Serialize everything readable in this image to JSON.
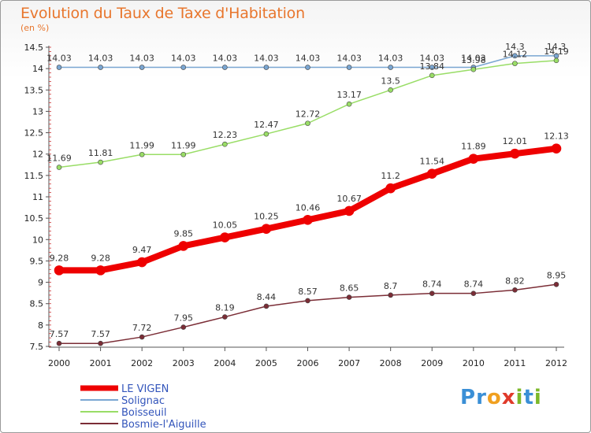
{
  "title": "Evolution du Taux de Taxe d'Habitation",
  "subtitle": "(en %)",
  "logo": {
    "letters": [
      "P",
      "r",
      "o",
      "x",
      "i",
      "t",
      "i"
    ],
    "colors": [
      "#3a8fd6",
      "#3a8fd6",
      "#f0a020",
      "#e03a2a",
      "#7cb82a",
      "#3a8fd6",
      "#7cb82a"
    ]
  },
  "chart_data": {
    "type": "line",
    "x": [
      2000,
      2001,
      2002,
      2003,
      2004,
      2005,
      2006,
      2007,
      2008,
      2009,
      2010,
      2011,
      2012
    ],
    "ylim": [
      7.5,
      14.5
    ],
    "yticks": [
      "7.5",
      "8",
      "8.5",
      "9",
      "9.5",
      "10",
      "10.5",
      "11",
      "11.5",
      "12",
      "12.5",
      "13",
      "13.5",
      "14",
      "14.5"
    ],
    "grid": false,
    "legend_position": "bottom-left",
    "series": [
      {
        "name": "LE VIGEN",
        "color": "#ee0000",
        "width": 8,
        "values": [
          9.28,
          9.28,
          9.47,
          9.85,
          10.05,
          10.25,
          10.46,
          10.67,
          11.2,
          11.54,
          11.89,
          12.01,
          12.13
        ],
        "labels": [
          "9.28",
          "9.28",
          "9.47",
          "9.85",
          "10.05",
          "10.25",
          "10.46",
          "10.67",
          "11.2",
          "11.54",
          "11.89",
          "12.01",
          "12.13"
        ]
      },
      {
        "name": "Solignac",
        "color": "#7aa6d2",
        "width": 1.5,
        "values": [
          14.03,
          14.03,
          14.03,
          14.03,
          14.03,
          14.03,
          14.03,
          14.03,
          14.03,
          14.03,
          14.03,
          14.3,
          14.3
        ],
        "labels": [
          "14.03",
          "14.03",
          "14.03",
          "14.03",
          "14.03",
          "14.03",
          "14.03",
          "14.03",
          "14.03",
          "14.03",
          "14.03",
          "14.3",
          "14.3"
        ]
      },
      {
        "name": "Boisseuil",
        "color": "#99dd66",
        "width": 1.5,
        "values": [
          11.69,
          11.81,
          11.99,
          11.99,
          12.23,
          12.47,
          12.72,
          13.17,
          13.5,
          13.84,
          13.98,
          14.12,
          14.19
        ],
        "labels": [
          "11.69",
          "11.81",
          "11.99",
          "11.99",
          "12.23",
          "12.47",
          "12.72",
          "13.17",
          "13.5",
          "13.84",
          "13.98",
          "14.12",
          "14.19"
        ]
      },
      {
        "name": "Bosmie-l'Aiguille",
        "color": "#7b2d36",
        "width": 1.5,
        "values": [
          7.57,
          7.57,
          7.72,
          7.95,
          8.19,
          8.44,
          8.57,
          8.65,
          8.7,
          8.74,
          8.74,
          8.82,
          8.95
        ],
        "labels": [
          "7.57",
          "7.57",
          "7.72",
          "7.95",
          "8.19",
          "8.44",
          "8.57",
          "8.65",
          "8.7",
          "8.74",
          "8.74",
          "8.82",
          "8.95"
        ]
      }
    ]
  }
}
